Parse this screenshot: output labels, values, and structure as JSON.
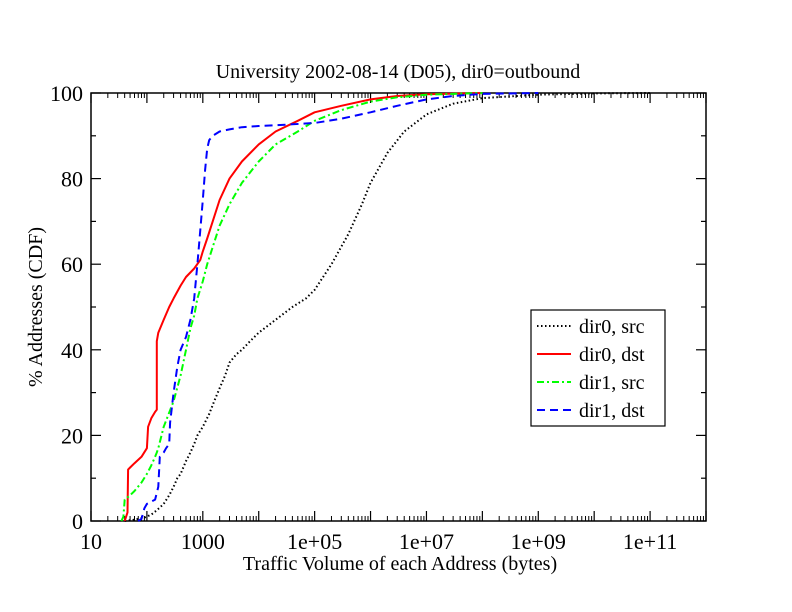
{
  "chart_data": {
    "type": "line",
    "title": "University 2002-08-14 (D05), dir0=outbound",
    "xlabel": "Traffic Volume of each Address (bytes)",
    "ylabel": "% Addresses (CDF)",
    "xscale": "log",
    "xlim": [
      10,
      1000000000000.0
    ],
    "ylim": [
      0,
      100
    ],
    "x_ticks": [
      {
        "value": 10,
        "label": "10"
      },
      {
        "value": 1000,
        "label": "1000"
      },
      {
        "value": 100000,
        "label": "1e+05"
      },
      {
        "value": 10000000,
        "label": "1e+07"
      },
      {
        "value": 1000000000,
        "label": "1e+09"
      },
      {
        "value": 100000000000,
        "label": "1e+11"
      }
    ],
    "y_ticks": [
      {
        "value": 0,
        "label": "0"
      },
      {
        "value": 20,
        "label": "20"
      },
      {
        "value": 40,
        "label": "40"
      },
      {
        "value": 60,
        "label": "60"
      },
      {
        "value": 80,
        "label": "80"
      },
      {
        "value": 100,
        "label": "100"
      }
    ],
    "grid": false,
    "legend_position": "right",
    "series": [
      {
        "name": "dir0, src",
        "color": "#000000",
        "dash": "dotted",
        "points": [
          [
            40,
            0
          ],
          [
            60,
            0.3
          ],
          [
            90,
            0.8
          ],
          [
            120,
            1.5
          ],
          [
            150,
            2.5
          ],
          [
            200,
            4
          ],
          [
            250,
            6
          ],
          [
            300,
            8
          ],
          [
            350,
            10
          ],
          [
            400,
            11
          ],
          [
            500,
            14
          ],
          [
            600,
            16
          ],
          [
            700,
            18
          ],
          [
            800,
            20
          ],
          [
            1000,
            22
          ],
          [
            1300,
            25
          ],
          [
            1600,
            28
          ],
          [
            2000,
            31
          ],
          [
            2500,
            34
          ],
          [
            3000,
            37
          ],
          [
            4000,
            39
          ],
          [
            5000,
            40
          ],
          [
            7000,
            42
          ],
          [
            10000,
            44
          ],
          [
            20000,
            47
          ],
          [
            40000,
            50
          ],
          [
            70000,
            52
          ],
          [
            100000,
            54
          ],
          [
            200000,
            60
          ],
          [
            400000,
            67
          ],
          [
            700000,
            74
          ],
          [
            1000000,
            79
          ],
          [
            2000000,
            86
          ],
          [
            4000000,
            91
          ],
          [
            10000000,
            95
          ],
          [
            30000000,
            97.5
          ],
          [
            100000000,
            98.8
          ],
          [
            1000000000,
            99.6
          ],
          [
            10000000000,
            99.9
          ],
          [
            100000000000,
            100
          ]
        ]
      },
      {
        "name": "dir0, dst",
        "color": "#ff0000",
        "dash": "solid",
        "points": [
          [
            40,
            0
          ],
          [
            45,
            2
          ],
          [
            46,
            12
          ],
          [
            50,
            12.5
          ],
          [
            60,
            13.5
          ],
          [
            80,
            15
          ],
          [
            100,
            17
          ],
          [
            105,
            22
          ],
          [
            120,
            24
          ],
          [
            140,
            25.5
          ],
          [
            150,
            26
          ],
          [
            150,
            42
          ],
          [
            160,
            44
          ],
          [
            200,
            47
          ],
          [
            250,
            50
          ],
          [
            300,
            52
          ],
          [
            400,
            55
          ],
          [
            500,
            57
          ],
          [
            700,
            59
          ],
          [
            900,
            61
          ],
          [
            1000,
            63
          ],
          [
            1200,
            66
          ],
          [
            1500,
            70
          ],
          [
            2000,
            75
          ],
          [
            3000,
            80
          ],
          [
            5000,
            84
          ],
          [
            10000,
            88
          ],
          [
            20000,
            91
          ],
          [
            50000,
            93.5
          ],
          [
            100000,
            95.5
          ],
          [
            300000,
            97
          ],
          [
            1000000,
            98.5
          ],
          [
            3000000,
            99.3
          ],
          [
            10000000,
            99.7
          ],
          [
            100000000,
            100
          ]
        ]
      },
      {
        "name": "dir1, src",
        "color": "#00ff00",
        "dash": "dashdot",
        "points": [
          [
            35,
            0
          ],
          [
            38,
            1
          ],
          [
            40,
            5
          ],
          [
            50,
            6
          ],
          [
            60,
            7
          ],
          [
            80,
            9
          ],
          [
            100,
            11
          ],
          [
            120,
            13
          ],
          [
            140,
            15
          ],
          [
            150,
            16
          ],
          [
            160,
            17
          ],
          [
            200,
            22
          ],
          [
            300,
            28
          ],
          [
            400,
            34
          ],
          [
            500,
            40
          ],
          [
            600,
            45
          ],
          [
            700,
            48
          ],
          [
            800,
            52
          ],
          [
            1000,
            56
          ],
          [
            1200,
            60
          ],
          [
            1500,
            64
          ],
          [
            2000,
            69
          ],
          [
            3000,
            74
          ],
          [
            5000,
            79
          ],
          [
            10000,
            84
          ],
          [
            20000,
            88
          ],
          [
            50000,
            91
          ],
          [
            100000,
            93.5
          ],
          [
            300000,
            96
          ],
          [
            1000000,
            98
          ],
          [
            3000000,
            99
          ],
          [
            10000000,
            99.6
          ],
          [
            100000000,
            100
          ]
        ]
      },
      {
        "name": "dir1, dst",
        "color": "#0000ff",
        "dash": "dashed",
        "points": [
          [
            70,
            0
          ],
          [
            80,
            0.5
          ],
          [
            90,
            3
          ],
          [
            100,
            4
          ],
          [
            140,
            5
          ],
          [
            160,
            8
          ],
          [
            170,
            15
          ],
          [
            200,
            16
          ],
          [
            220,
            17
          ],
          [
            250,
            18
          ],
          [
            260,
            23
          ],
          [
            300,
            30
          ],
          [
            350,
            36
          ],
          [
            400,
            40
          ],
          [
            500,
            43
          ],
          [
            600,
            47
          ],
          [
            700,
            52
          ],
          [
            800,
            60
          ],
          [
            900,
            68
          ],
          [
            1000,
            75
          ],
          [
            1100,
            82
          ],
          [
            1200,
            87
          ],
          [
            1300,
            89
          ],
          [
            1500,
            90
          ],
          [
            2000,
            91
          ],
          [
            3000,
            91.5
          ],
          [
            5000,
            92
          ],
          [
            10000,
            92.3
          ],
          [
            30000,
            92.6
          ],
          [
            100000,
            93
          ],
          [
            300000,
            94
          ],
          [
            1000000,
            95.5
          ],
          [
            3000000,
            97
          ],
          [
            10000000,
            98.5
          ],
          [
            30000000,
            99.3
          ],
          [
            100000000,
            99.8
          ],
          [
            1000000000,
            100
          ]
        ]
      }
    ]
  }
}
